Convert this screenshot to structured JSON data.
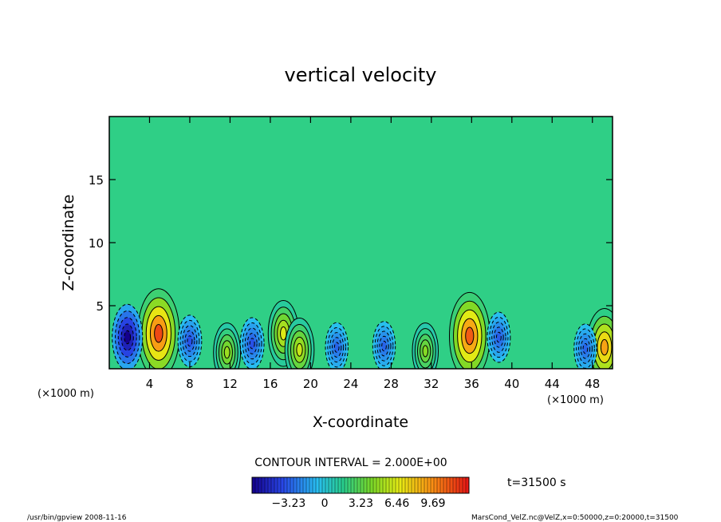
{
  "chart_data": {
    "type": "heatmap",
    "title": "vertical velocity",
    "xlabel": "X-coordinate",
    "ylabel": "Z-coordinate",
    "x_unit": "(×1000 m)",
    "y_unit": "(×1000 m)",
    "xlim": [
      0,
      50
    ],
    "ylim": [
      0,
      20
    ],
    "x_ticks": [
      "4",
      "8",
      "12",
      "16",
      "20",
      "24",
      "28",
      "32",
      "36",
      "40",
      "44",
      "48"
    ],
    "y_ticks": [
      "5",
      "10",
      "15"
    ],
    "x_tick_values": [
      4,
      8,
      12,
      16,
      20,
      24,
      28,
      32,
      36,
      40,
      44,
      48
    ],
    "y_tick_values": [
      5,
      10,
      15
    ],
    "contour_interval_label": "CONTOUR INTERVAL = 2.000E+00",
    "time_label": "t=31500 s",
    "colorbar": {
      "range": [
        -6.5,
        12.9
      ],
      "tick_labels": [
        "−3.23",
        "0",
        "3.23",
        "6.46",
        "9.69"
      ],
      "tick_values": [
        -3.23,
        0,
        3.23,
        6.46,
        9.69
      ]
    },
    "features": [
      {
        "kind": "updraft",
        "x": 4.9,
        "z": 2.8,
        "peak": 11.5
      },
      {
        "kind": "updraft",
        "x": 35.8,
        "z": 2.6,
        "peak": 11.0
      },
      {
        "kind": "updraft",
        "x": 49.2,
        "z": 1.7,
        "peak": 9.0
      },
      {
        "kind": "updraft",
        "x": 17.3,
        "z": 2.8,
        "peak": 6.5
      },
      {
        "kind": "updraft",
        "x": 18.9,
        "z": 1.5,
        "peak": 6.0
      },
      {
        "kind": "updraft",
        "x": 11.7,
        "z": 1.3,
        "peak": 5.0
      },
      {
        "kind": "updraft",
        "x": 31.4,
        "z": 1.4,
        "peak": 4.5
      },
      {
        "kind": "downdraft",
        "x": 1.8,
        "z": 2.5,
        "peak": -6.5
      },
      {
        "kind": "downdraft",
        "x": 8.0,
        "z": 2.2,
        "peak": -3.5
      },
      {
        "kind": "downdraft",
        "x": 14.2,
        "z": 2.0,
        "peak": -3.5
      },
      {
        "kind": "downdraft",
        "x": 22.6,
        "z": 1.7,
        "peak": -3.0
      },
      {
        "kind": "downdraft",
        "x": 27.3,
        "z": 1.8,
        "peak": -3.0
      },
      {
        "kind": "downdraft",
        "x": 38.7,
        "z": 2.5,
        "peak": -3.2
      },
      {
        "kind": "downdraft",
        "x": 47.3,
        "z": 1.6,
        "peak": -3.0
      }
    ]
  },
  "footer": {
    "program": "/usr/bin/gpview   2008-11-16",
    "source": "MarsCond_VelZ.nc@VelZ,x=0:50000,z=0:20000,t=31500"
  }
}
